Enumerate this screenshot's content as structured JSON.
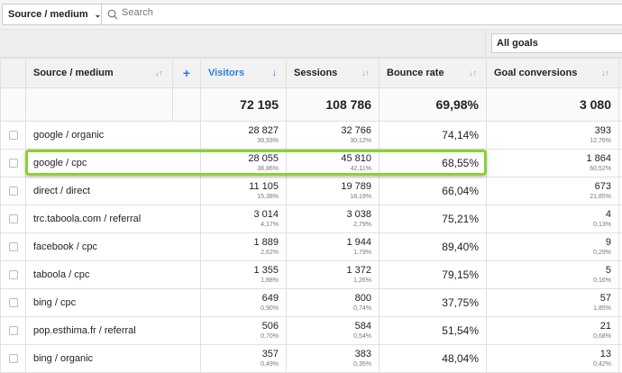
{
  "top": {
    "dimension": "Source / medium",
    "search_placeholder": "Search",
    "goals_select": "All goals"
  },
  "columns": {
    "source": "Source / medium",
    "add": "+",
    "visitors": "Visitors",
    "sessions": "Sessions",
    "bounce": "Bounce rate",
    "goals": "Goal conversions",
    "sort_icon": "↓↑",
    "active_sort_icon": "↓"
  },
  "totals": {
    "visitors": "72 195",
    "sessions": "108 786",
    "bounce": "69,98%",
    "goals": "3 080"
  },
  "rows": [
    {
      "source": "google / organic",
      "visitors": "28 827",
      "visitors_pct": "39,93%",
      "sessions": "32 766",
      "sessions_pct": "30,12%",
      "bounce": "74,14%",
      "goals": "393",
      "goals_pct": "12,76%"
    },
    {
      "source": "google / cpc",
      "visitors": "28 055",
      "visitors_pct": "38,86%",
      "sessions": "45 810",
      "sessions_pct": "42,11%",
      "bounce": "68,55%",
      "goals": "1 864",
      "goals_pct": "60,52%"
    },
    {
      "source": "direct / direct",
      "visitors": "11 105",
      "visitors_pct": "15,38%",
      "sessions": "19 789",
      "sessions_pct": "18,19%",
      "bounce": "66,04%",
      "goals": "673",
      "goals_pct": "21,85%"
    },
    {
      "source": "trc.taboola.com / referral",
      "visitors": "3 014",
      "visitors_pct": "4,17%",
      "sessions": "3 038",
      "sessions_pct": "2,79%",
      "bounce": "75,21%",
      "goals": "4",
      "goals_pct": "0,13%"
    },
    {
      "source": "facebook / cpc",
      "visitors": "1 889",
      "visitors_pct": "2,62%",
      "sessions": "1 944",
      "sessions_pct": "1,79%",
      "bounce": "89,40%",
      "goals": "9",
      "goals_pct": "0,29%"
    },
    {
      "source": "taboola / cpc",
      "visitors": "1 355",
      "visitors_pct": "1,88%",
      "sessions": "1 372",
      "sessions_pct": "1,26%",
      "bounce": "79,15%",
      "goals": "5",
      "goals_pct": "0,16%"
    },
    {
      "source": "bing / cpc",
      "visitors": "649",
      "visitors_pct": "0,90%",
      "sessions": "800",
      "sessions_pct": "0,74%",
      "bounce": "37,75%",
      "goals": "57",
      "goals_pct": "1,85%"
    },
    {
      "source": "pop.esthima.fr / referral",
      "visitors": "506",
      "visitors_pct": "0,70%",
      "sessions": "584",
      "sessions_pct": "0,54%",
      "bounce": "51,54%",
      "goals": "21",
      "goals_pct": "0,68%"
    },
    {
      "source": "bing / organic",
      "visitors": "357",
      "visitors_pct": "0,49%",
      "sessions": "383",
      "sessions_pct": "0,35%",
      "bounce": "48,04%",
      "goals": "13",
      "goals_pct": "0,42%"
    }
  ],
  "highlight_color": "#8ad132"
}
